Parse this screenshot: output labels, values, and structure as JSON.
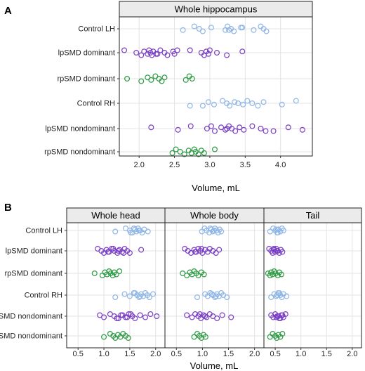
{
  "panel_labels": [
    "A",
    "B"
  ],
  "chart_data": [
    {
      "type": "scatter",
      "panel": "A",
      "facet_titles": [
        "Whole hippocampus"
      ],
      "xlabel": "Volume, mL",
      "xlim": [
        1.72,
        4.45
      ],
      "xticks": [
        "2.0",
        "2.5",
        "3.0",
        "3.5",
        "4.0"
      ],
      "grid": true,
      "categories": [
        "Control LH",
        "lpSMD dominant",
        "rpSMD dominant",
        "Control RH",
        "lpSMD nondominant",
        "rpSMD nondominant"
      ],
      "series": [
        {
          "color": "#8fb6e6",
          "facets": [
            [
              2.62,
              2.78,
              2.85,
              2.9,
              3.02,
              3.22,
              3.25,
              3.3,
              3.34,
              3.46,
              3.62,
              3.72,
              3.76,
              3.8,
              3.44,
              3.27
            ]
          ]
        },
        {
          "color": "#7a3fc4",
          "facets": [
            [
              1.79,
              1.96,
              2.03,
              2.07,
              2.12,
              2.14,
              2.16,
              2.18,
              2.2,
              2.24,
              2.3,
              2.36,
              2.4,
              2.48,
              2.5,
              2.72,
              2.88,
              2.92,
              2.95,
              2.98,
              3.0,
              3.1,
              3.24,
              3.46,
              2.26,
              2.54
            ]
          ]
        },
        {
          "color": "#2e9b45",
          "facets": [
            [
              1.83,
              2.03,
              2.12,
              2.17,
              2.23,
              2.28,
              2.32,
              2.36,
              2.66,
              2.71,
              2.75
            ]
          ]
        },
        {
          "color": "#8fb6e6",
          "facets": [
            [
              2.72,
              2.98,
              3.06,
              3.18,
              3.24,
              3.28,
              3.35,
              3.47,
              3.53,
              3.6,
              3.68,
              3.76,
              4.02,
              4.22,
              3.4,
              2.9
            ]
          ]
        },
        {
          "color": "#7a3fc4",
          "facets": [
            [
              2.17,
              2.55,
              2.73,
              2.96,
              3.07,
              3.16,
              3.22,
              3.27,
              3.31,
              3.36,
              3.42,
              3.48,
              3.6,
              3.72,
              3.9,
              4.11,
              4.31,
              3.02,
              3.24,
              3.79
            ]
          ]
        },
        {
          "color": "#2e9b45",
          "facets": [
            [
              2.47,
              2.52,
              2.58,
              2.64,
              2.7,
              2.74,
              2.78,
              2.8,
              2.84,
              2.88,
              2.92,
              3.07
            ]
          ]
        }
      ]
    },
    {
      "type": "scatter",
      "panel": "B",
      "facet_titles": [
        "Whole head",
        "Whole body",
        "Tail"
      ],
      "xlabel": "Volume, mL",
      "xlim": [
        0.28,
        2.18
      ],
      "xticks": [
        "0.5",
        "1.0",
        "1.5",
        "2.0"
      ],
      "grid": true,
      "categories": [
        "Control LH",
        "lpSMD dominant",
        "rpSMD dominant",
        "Control RH",
        "lpSMD nondominant",
        "rpSMD nondominant"
      ],
      "series": [
        {
          "color": "#8fb6e6",
          "facets": [
            [
              1.22,
              1.42,
              1.5,
              1.55,
              1.6,
              1.63,
              1.66,
              1.7,
              1.74,
              1.78,
              1.85,
              1.58,
              1.68,
              1.52
            ],
            [
              0.99,
              1.04,
              1.08,
              1.13,
              1.17,
              1.2,
              1.24,
              1.27,
              1.3,
              1.33,
              1.36,
              1.15,
              1.22
            ],
            [
              0.4,
              0.46,
              0.5,
              0.54,
              0.56,
              0.6,
              0.63,
              0.66,
              0.55,
              0.52
            ]
          ]
        },
        {
          "color": "#7a3fc4",
          "facets": [
            [
              0.88,
              0.95,
              1.0,
              1.05,
              1.1,
              1.15,
              1.2,
              1.26,
              1.3,
              1.35,
              1.4,
              1.45,
              1.5,
              1.72,
              1.08,
              1.18,
              1.28,
              1.38
            ],
            [
              0.66,
              0.72,
              0.78,
              0.84,
              0.88,
              0.92,
              0.96,
              1.0,
              1.05,
              1.1,
              1.14,
              1.2,
              1.26,
              1.32,
              0.86,
              0.98
            ],
            [
              0.38,
              0.42,
              0.45,
              0.48,
              0.5,
              0.52,
              0.55,
              0.58,
              0.61,
              0.64,
              0.47,
              0.53
            ]
          ]
        },
        {
          "color": "#2e9b45",
          "facets": [
            [
              0.82,
              0.97,
              1.02,
              1.06,
              1.1,
              1.13,
              1.17,
              1.2,
              1.24,
              1.3
            ],
            [
              0.62,
              0.7,
              0.76,
              0.8,
              0.84,
              0.88,
              0.92,
              0.98,
              1.03
            ],
            [
              0.36,
              0.4,
              0.42,
              0.45,
              0.48,
              0.51,
              0.55,
              0.58,
              0.62
            ]
          ]
        },
        {
          "color": "#8fb6e6",
          "facets": [
            [
              1.22,
              1.4,
              1.5,
              1.6,
              1.64,
              1.68,
              1.72,
              1.76,
              1.8,
              1.84,
              1.88,
              1.95,
              1.7,
              1.58
            ],
            [
              0.9,
              1.05,
              1.1,
              1.15,
              1.2,
              1.24,
              1.28,
              1.32,
              1.36,
              1.4,
              1.47,
              1.18,
              1.26
            ],
            [
              0.42,
              0.48,
              0.52,
              0.56,
              0.6,
              0.63,
              0.66,
              0.72,
              0.58,
              0.54
            ]
          ]
        },
        {
          "color": "#7a3fc4",
          "facets": [
            [
              0.92,
              1.0,
              1.12,
              1.2,
              1.28,
              1.36,
              1.42,
              1.48,
              1.55,
              1.6,
              1.7,
              1.8,
              1.9,
              2.02,
              1.25,
              1.33,
              1.45,
              1.52
            ],
            [
              0.7,
              0.8,
              0.86,
              0.92,
              0.97,
              1.02,
              1.08,
              1.14,
              1.2,
              1.28,
              1.38,
              1.55,
              0.95,
              1.05
            ],
            [
              0.42,
              0.46,
              0.5,
              0.54,
              0.58,
              0.62,
              0.66,
              0.7,
              0.56,
              0.6,
              0.64,
              0.52
            ]
          ]
        },
        {
          "color": "#2e9b45",
          "facets": [
            [
              1.0,
              1.12,
              1.18,
              1.22,
              1.27,
              1.32,
              1.37,
              1.42,
              1.47
            ],
            [
              0.84,
              0.9,
              0.94,
              0.98,
              1.02,
              1.06
            ],
            [
              0.4,
              0.45,
              0.5,
              0.53,
              0.56,
              0.6,
              0.64
            ]
          ]
        }
      ]
    }
  ]
}
